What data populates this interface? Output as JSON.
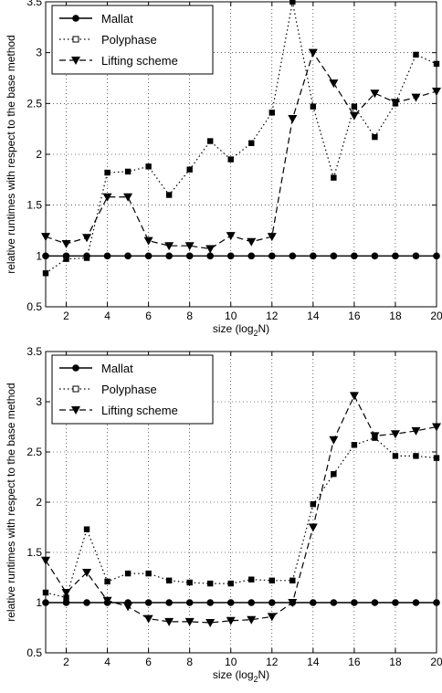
{
  "chart_data": [
    {
      "type": "line",
      "title": "",
      "xlabel": "size (log",
      "xlabel_sub": "2",
      "xlabel_end": "N)",
      "ylabel": "relative runtimes with respect to the base method",
      "xlim": [
        1,
        20
      ],
      "ylim": [
        0.5,
        3.5
      ],
      "xticks": [
        2,
        4,
        6,
        8,
        10,
        12,
        14,
        16,
        18,
        20
      ],
      "xtick_labels": [
        "2",
        "4",
        "6",
        "8",
        "10",
        "12",
        "14",
        "16",
        "18",
        "20"
      ],
      "yticks": [
        0.5,
        1,
        1.5,
        2,
        2.5,
        3,
        3.5
      ],
      "ytick_labels": [
        "0.5",
        "1",
        "1.5",
        "2",
        "2.5",
        "3",
        "3.5"
      ],
      "grid": true,
      "legend_position": "top-left",
      "x": [
        1,
        2,
        3,
        4,
        5,
        6,
        7,
        8,
        9,
        10,
        11,
        12,
        13,
        14,
        15,
        16,
        17,
        18,
        19,
        20
      ],
      "series": [
        {
          "name": "Mallat",
          "style": "solid",
          "marker": "circle",
          "values": [
            1,
            1,
            1,
            1,
            1,
            1,
            1,
            1,
            1,
            1,
            1,
            1,
            1,
            1,
            1,
            1,
            1,
            1,
            1,
            1
          ]
        },
        {
          "name": "Polyphase",
          "style": "dotted",
          "marker": "square",
          "values": [
            0.83,
            0.97,
            0.98,
            1.82,
            1.83,
            1.88,
            1.6,
            1.85,
            2.13,
            1.95,
            2.11,
            2.41,
            3.5,
            2.47,
            1.77,
            2.47,
            2.17,
            2.5,
            2.98,
            2.89
          ]
        },
        {
          "name": "Lifting scheme",
          "style": "dashed",
          "marker": "triangle-down",
          "values": [
            1.19,
            1.12,
            1.18,
            1.58,
            1.58,
            1.15,
            1.1,
            1.1,
            1.07,
            1.2,
            1.14,
            1.19,
            2.35,
            3.0,
            2.7,
            2.38,
            2.6,
            2.51,
            2.56,
            2.62
          ]
        }
      ]
    },
    {
      "type": "line",
      "title": "",
      "xlabel": "size (log",
      "xlabel_sub": "2",
      "xlabel_end": "N)",
      "ylabel": "relative runtimes with respect to the base method",
      "xlim": [
        1,
        20
      ],
      "ylim": [
        0.5,
        3.5
      ],
      "xticks": [
        2,
        4,
        6,
        8,
        10,
        12,
        14,
        16,
        18,
        20
      ],
      "xtick_labels": [
        "2",
        "4",
        "6",
        "8",
        "10",
        "12",
        "14",
        "16",
        "18",
        "20"
      ],
      "yticks": [
        0.5,
        1,
        1.5,
        2,
        2.5,
        3,
        3.5
      ],
      "ytick_labels": [
        "0.5",
        "1",
        "1.5",
        "2",
        "2.5",
        "3",
        "3.5"
      ],
      "grid": true,
      "legend_position": "top-left",
      "x": [
        1,
        2,
        3,
        4,
        5,
        6,
        7,
        8,
        9,
        10,
        11,
        12,
        13,
        14,
        15,
        16,
        17,
        18,
        19,
        20
      ],
      "series": [
        {
          "name": "Mallat",
          "style": "solid",
          "marker": "circle",
          "values": [
            1,
            1,
            1,
            1,
            1,
            1,
            1,
            1,
            1,
            1,
            1,
            1,
            1,
            1,
            1,
            1,
            1,
            1,
            1,
            1
          ]
        },
        {
          "name": "Polyphase",
          "style": "dotted",
          "marker": "square",
          "values": [
            1.1,
            1.05,
            1.73,
            1.21,
            1.29,
            1.29,
            1.22,
            1.2,
            1.19,
            1.19,
            1.23,
            1.22,
            1.22,
            1.98,
            2.28,
            2.57,
            2.64,
            2.46,
            2.46,
            2.44
          ]
        },
        {
          "name": "Lifting scheme",
          "style": "dashed",
          "marker": "triangle-down",
          "values": [
            1.42,
            1.1,
            1.3,
            1.02,
            0.96,
            0.84,
            0.81,
            0.81,
            0.8,
            0.82,
            0.83,
            0.86,
            1.0,
            1.75,
            2.62,
            3.06,
            2.66,
            2.68,
            2.71,
            2.75
          ]
        }
      ]
    }
  ]
}
